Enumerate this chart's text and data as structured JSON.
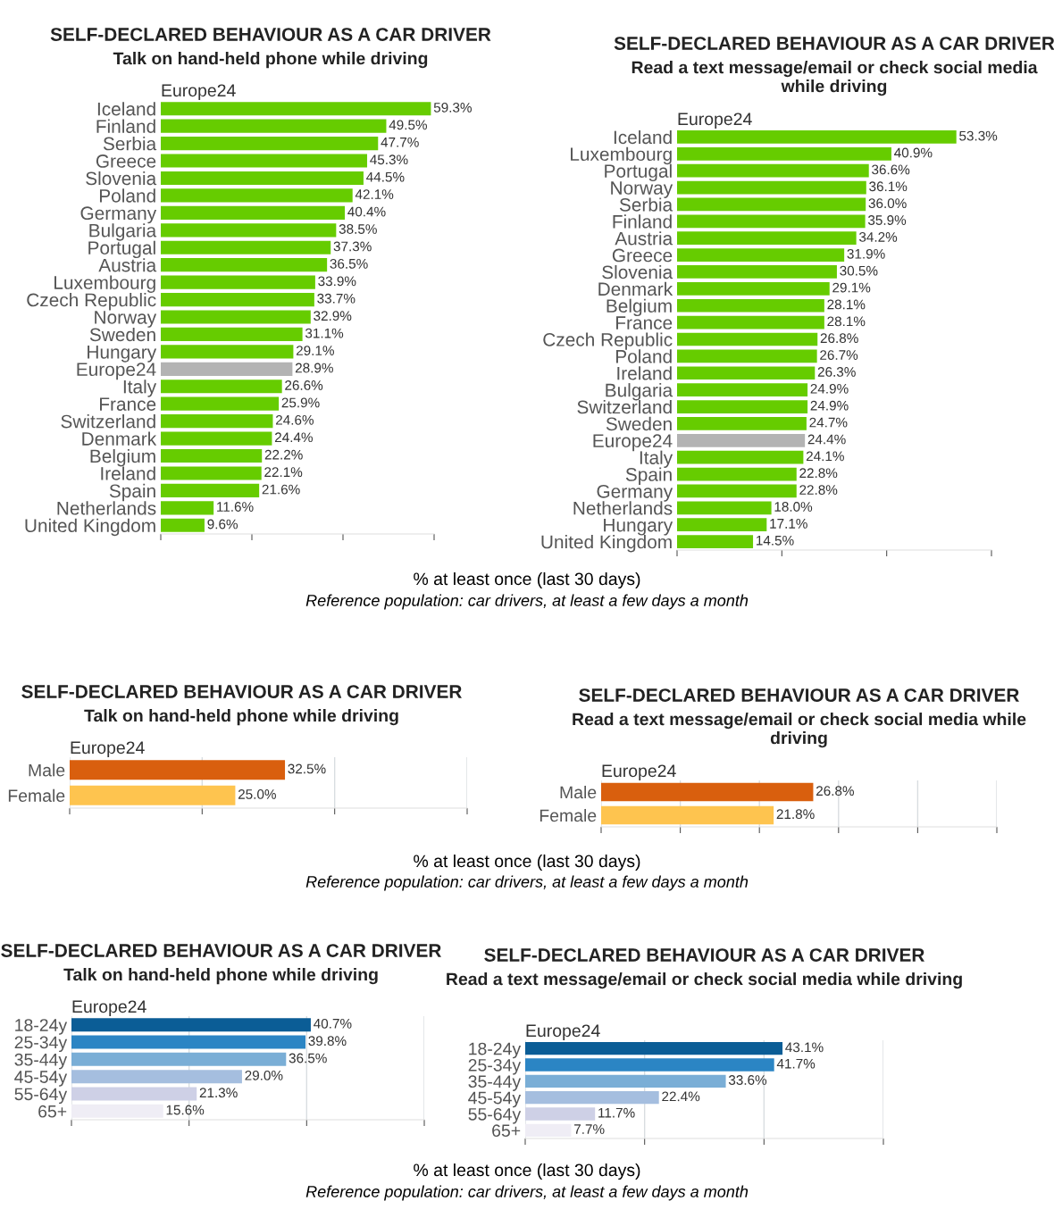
{
  "chart_data": [
    {
      "type": "bar",
      "orientation": "horizontal",
      "title": "SELF-DECLARED BEHAVIOUR AS A CAR DRIVER",
      "subtitle": "Talk on hand-held phone while driving",
      "xlabel": "% at least once (last 30 days)",
      "annotations": [
        "Europe24",
        "Reference population: car drivers, at least a few days a month"
      ],
      "categories": [
        "Iceland",
        "Finland",
        "Serbia",
        "Greece",
        "Slovenia",
        "Poland",
        "Germany",
        "Bulgaria",
        "Portugal",
        "Austria",
        "Luxembourg",
        "Czech Republic",
        "Norway",
        "Sweden",
        "Hungary",
        "Europe24",
        "Italy",
        "France",
        "Switzerland",
        "Denmark",
        "Belgium",
        "Ireland",
        "Spain",
        "Netherlands",
        "United Kingdom"
      ],
      "values": [
        59.3,
        49.5,
        47.7,
        45.3,
        44.5,
        42.1,
        40.4,
        38.5,
        37.3,
        36.5,
        33.9,
        33.7,
        32.9,
        31.1,
        29.1,
        28.9,
        26.6,
        25.9,
        24.6,
        24.4,
        22.2,
        22.1,
        21.6,
        11.6,
        9.6
      ],
      "colors": [
        "#66cc00",
        "#66cc00",
        "#66cc00",
        "#66cc00",
        "#66cc00",
        "#66cc00",
        "#66cc00",
        "#66cc00",
        "#66cc00",
        "#66cc00",
        "#66cc00",
        "#66cc00",
        "#66cc00",
        "#66cc00",
        "#66cc00",
        "#b3b3b3",
        "#66cc00",
        "#66cc00",
        "#66cc00",
        "#66cc00",
        "#66cc00",
        "#66cc00",
        "#66cc00",
        "#66cc00",
        "#66cc00"
      ],
      "value_labels": [
        "59.3%",
        "49.5%",
        "47.7%",
        "45.3%",
        "44.5%",
        "42.1%",
        "40.4%",
        "38.5%",
        "37.3%",
        "36.5%",
        "33.9%",
        "33.7%",
        "32.9%",
        "31.1%",
        "29.1%",
        "28.9%",
        "26.6%",
        "25.9%",
        "24.6%",
        "24.4%",
        "22.2%",
        "22.1%",
        "21.6%",
        "11.6%",
        "9.6%"
      ],
      "xlim": [
        0,
        60
      ],
      "xticks": [
        {
          "value": 0,
          "label": null
        },
        {
          "value": 20,
          "label": null
        },
        {
          "value": 40,
          "label": null
        },
        {
          "value": 60,
          "label": null
        }
      ],
      "tick_labels": "y",
      "grid": false,
      "legend": false
    },
    {
      "type": "bar",
      "orientation": "horizontal",
      "title": "SELF-DECLARED BEHAVIOUR AS A CAR DRIVER",
      "subtitle": "Read a text message/email or check social media while driving",
      "annotations": [
        "Europe24"
      ],
      "categories": [
        "Iceland",
        "Luxembourg",
        "Portugal",
        "Norway",
        "Serbia",
        "Finland",
        "Austria",
        "Greece",
        "Slovenia",
        "Denmark",
        "Belgium",
        "France",
        "Czech Republic",
        "Poland",
        "Ireland",
        "Bulgaria",
        "Switzerland",
        "Sweden",
        "Europe24",
        "Italy",
        "Spain",
        "Germany",
        "Netherlands",
        "Hungary",
        "United Kingdom"
      ],
      "values": [
        53.3,
        40.9,
        36.6,
        36.1,
        36.0,
        35.9,
        34.2,
        31.9,
        30.5,
        29.1,
        28.1,
        28.1,
        26.8,
        26.7,
        26.3,
        24.9,
        24.9,
        24.7,
        24.4,
        24.1,
        22.8,
        22.8,
        18.0,
        17.1,
        14.5
      ],
      "colors": [
        "#66cc00",
        "#66cc00",
        "#66cc00",
        "#66cc00",
        "#66cc00",
        "#66cc00",
        "#66cc00",
        "#66cc00",
        "#66cc00",
        "#66cc00",
        "#66cc00",
        "#66cc00",
        "#66cc00",
        "#66cc00",
        "#66cc00",
        "#66cc00",
        "#66cc00",
        "#66cc00",
        "#b3b3b3",
        "#66cc00",
        "#66cc00",
        "#66cc00",
        "#66cc00",
        "#66cc00",
        "#66cc00"
      ],
      "value_labels": [
        "53.3%",
        "40.9%",
        "36.6%",
        "36.1%",
        "36.0%",
        "35.9%",
        "34.2%",
        "31.9%",
        "30.5%",
        "29.1%",
        "28.1%",
        "28.1%",
        "26.8%",
        "26.7%",
        "26.3%",
        "24.9%",
        "24.9%",
        "24.7%",
        "24.4%",
        "24.1%",
        "22.8%",
        "22.8%",
        "18.0%",
        "17.1%",
        "14.5%"
      ],
      "xlim": [
        0,
        60
      ],
      "xticks": [
        {
          "value": 0,
          "label": null
        },
        {
          "value": 20,
          "label": null
        },
        {
          "value": 40,
          "label": null
        },
        {
          "value": 60,
          "label": null
        }
      ],
      "tick_labels": "y",
      "grid": false,
      "legend": false
    },
    {
      "type": "bar",
      "orientation": "horizontal",
      "title": "SELF-DECLARED BEHAVIOUR AS A CAR DRIVER",
      "subtitle": "Talk on hand-held phone while driving",
      "xlabel": "% at least once (last 30 days)",
      "annotations": [
        "Europe24",
        "Reference population: car drivers, at least a few days a month"
      ],
      "categories": [
        "Male",
        "Female"
      ],
      "values": [
        32.5,
        25.0
      ],
      "colors": [
        "#d95f0e",
        "#fec44f"
      ],
      "value_labels": [
        "32.5%",
        "25.0%"
      ],
      "xlim": [
        0,
        60
      ],
      "xticks": [
        {
          "value": 0,
          "label": null
        },
        {
          "value": 20,
          "label": null
        },
        {
          "value": 40,
          "label": null
        },
        {
          "value": 60,
          "label": null
        }
      ],
      "tick_labels": "y",
      "grid": "x",
      "legend": false
    },
    {
      "type": "bar",
      "orientation": "horizontal",
      "title": "SELF-DECLARED BEHAVIOUR AS A CAR DRIVER",
      "subtitle": "Read a text message/email or check social media while driving",
      "annotations": [
        "Europe24"
      ],
      "categories": [
        "Male",
        "Female"
      ],
      "values": [
        26.8,
        21.8
      ],
      "colors": [
        "#d95f0e",
        "#fec44f"
      ],
      "value_labels": [
        "26.8%",
        "21.8%"
      ],
      "xlim": [
        0,
        50
      ],
      "xticks": [
        {
          "value": 0,
          "label": null
        },
        {
          "value": 10,
          "label": null
        },
        {
          "value": 20,
          "label": null
        },
        {
          "value": 30,
          "label": null
        },
        {
          "value": 40,
          "label": null
        },
        {
          "value": 50,
          "label": null
        }
      ],
      "tick_labels": "y",
      "grid": "x",
      "legend": false
    },
    {
      "type": "bar",
      "orientation": "horizontal",
      "title": "SELF-DECLARED BEHAVIOUR AS A CAR DRIVER",
      "subtitle": "Talk on hand-held phone while driving",
      "xlabel": "% at least once (last 30 days)",
      "annotations": [
        "Europe24",
        "Reference population: car drivers, at least a few days a month"
      ],
      "categories": [
        "18-24y",
        "25-34y",
        "35-44y",
        "45-54y",
        "55-64y",
        "65+"
      ],
      "values": [
        40.7,
        39.8,
        36.5,
        29.0,
        21.3,
        15.6
      ],
      "colors": [
        "#0b5d96",
        "#2b85c4",
        "#7aaed6",
        "#a5bedf",
        "#ced0e6",
        "#efedf5"
      ],
      "value_labels": [
        "40.7%",
        "39.8%",
        "36.5%",
        "29.0%",
        "21.3%",
        "15.6%"
      ],
      "xlim": [
        0,
        60
      ],
      "xticks": [
        {
          "value": 0,
          "label": null
        },
        {
          "value": 20,
          "label": null
        },
        {
          "value": 40,
          "label": null
        },
        {
          "value": 60,
          "label": null
        }
      ],
      "tick_labels": "y",
      "grid": "x",
      "legend": false
    },
    {
      "type": "bar",
      "orientation": "horizontal",
      "title": "SELF-DECLARED BEHAVIOUR AS A CAR DRIVER",
      "subtitle": "Read a text message/email or check social media while driving",
      "annotations": [
        "Europe24"
      ],
      "categories": [
        "18-24y",
        "25-34y",
        "35-44y",
        "45-54y",
        "55-64y",
        "65+"
      ],
      "values": [
        43.1,
        41.7,
        33.6,
        22.4,
        11.7,
        7.7
      ],
      "colors": [
        "#0b5d96",
        "#2b85c4",
        "#7aaed6",
        "#a5bedf",
        "#ced0e6",
        "#efedf5"
      ],
      "value_labels": [
        "43.1%",
        "41.7%",
        "33.6%",
        "22.4%",
        "11.7%",
        "7.7%"
      ],
      "xlim": [
        0,
        60
      ],
      "xticks": [
        {
          "value": 0,
          "label": null
        },
        {
          "value": 20,
          "label": null
        },
        {
          "value": 40,
          "label": null
        },
        {
          "value": 60,
          "label": null
        }
      ],
      "tick_labels": "y",
      "grid": "x",
      "legend": false
    }
  ]
}
